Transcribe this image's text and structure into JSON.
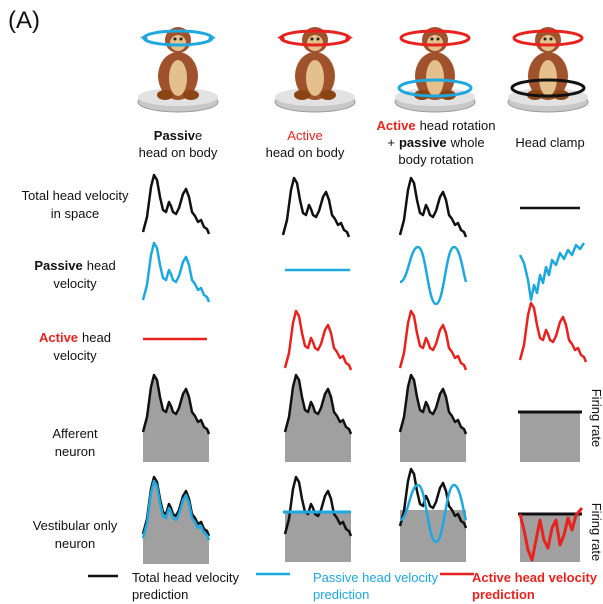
{
  "panel_label": "(A)",
  "columns": [
    {
      "lines": [
        [
          "Passiv",
          "e"
        ],
        [
          "head on body"
        ]
      ]
    },
    {
      "lines": [
        [
          "Active"
        ],
        [
          "head on body"
        ]
      ]
    },
    {
      "lines": [
        [
          "Active",
          "head rotation"
        ],
        [
          "+",
          "passive",
          "whole"
        ],
        [
          "body rotation"
        ]
      ]
    },
    {
      "lines": [
        [
          "Head clamp"
        ]
      ]
    }
  ],
  "rows": [
    {
      "lines": [
        [
          "Total head velocity"
        ],
        [
          "in space"
        ]
      ]
    },
    {
      "lines": [
        [
          "Passive",
          "head"
        ],
        [
          "velocity"
        ]
      ]
    },
    {
      "lines": [
        [
          "Active",
          "head"
        ],
        [
          "velocity"
        ]
      ]
    },
    {
      "lines": [
        [
          "Afferent"
        ],
        [
          "neuron"
        ]
      ]
    },
    {
      "lines": [
        [
          "Vestibular only"
        ],
        [
          "neuron"
        ]
      ]
    }
  ],
  "side_labels": [
    "Firing rate",
    "Firing rate"
  ],
  "legend": [
    {
      "lines": [
        "Total head velocity",
        "prediction"
      ]
    },
    {
      "lines": [
        "Passive head velocity",
        "prediction"
      ]
    },
    {
      "lines": [
        "Active head velocity",
        "prediction"
      ]
    }
  ]
}
